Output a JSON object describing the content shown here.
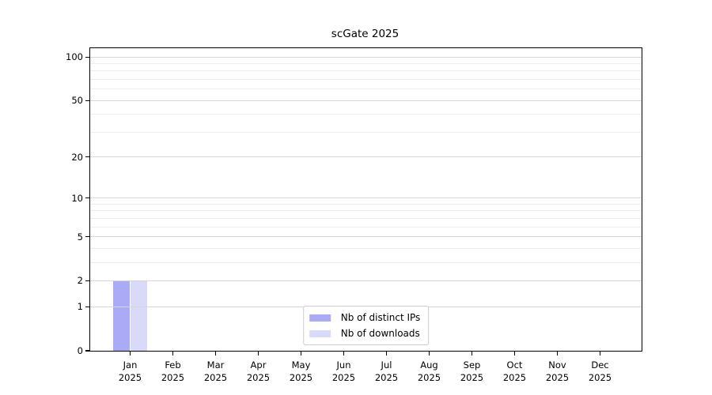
{
  "figure": {
    "background": "#ffffff",
    "text_color": "#000000"
  },
  "chart_data": {
    "type": "bar",
    "title": "scGate 2025",
    "xlabel": "",
    "ylabel": "",
    "categories": [
      "Jan",
      "Feb",
      "Mar",
      "Apr",
      "May",
      "Jun",
      "Jul",
      "Aug",
      "Sep",
      "Oct",
      "Nov",
      "Dec"
    ],
    "x_year_label": "2025",
    "series": [
      {
        "name": "Nb of distinct IPs",
        "color": "#aaaaf7",
        "values": [
          2,
          0,
          0,
          0,
          0,
          0,
          0,
          0,
          0,
          0,
          0,
          0
        ]
      },
      {
        "name": "Nb of downloads",
        "color": "#d9d9fa",
        "values": [
          2,
          0,
          0,
          0,
          0,
          0,
          0,
          0,
          0,
          0,
          0,
          0
        ]
      }
    ],
    "y_axis": {
      "scale": "log1p",
      "major_ticks": [
        0,
        1,
        2,
        5,
        10,
        20,
        50,
        100
      ],
      "minor_gridline_values": [
        3,
        4,
        6,
        7,
        8,
        9,
        30,
        40,
        60,
        70,
        80,
        90
      ],
      "ylim": [
        0,
        115
      ]
    },
    "grid": {
      "major_color": "#d6d6d6",
      "minor_color": "#ededed",
      "grid_above_bars": true
    },
    "legend": {
      "position": "lower center",
      "border_color": "#cccccc"
    }
  }
}
